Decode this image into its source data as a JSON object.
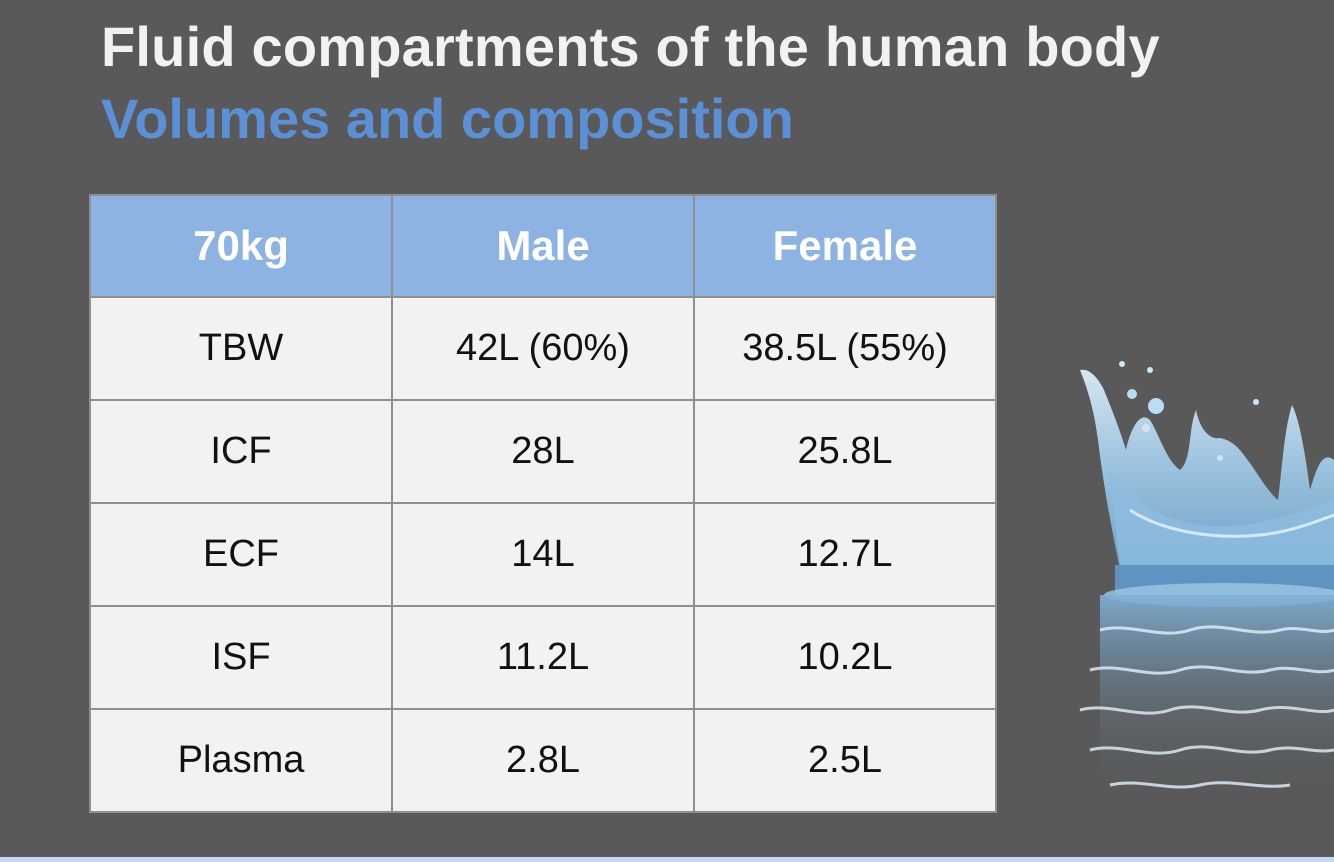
{
  "slide": {
    "title": "Fluid compartments of the human body",
    "subtitle": "Volumes and composition"
  },
  "table": {
    "headers": [
      "70kg",
      "Male",
      "Female"
    ],
    "rows": [
      [
        "TBW",
        "42L (60%)",
        "38.5L (55%)"
      ],
      [
        "ICF",
        "28L",
        "25.8L"
      ],
      [
        "ECF",
        "14L",
        "12.7L"
      ],
      [
        "ISF",
        "11.2L",
        "10.2L"
      ],
      [
        "Plasma",
        "2.8L",
        "2.5L"
      ]
    ]
  },
  "colors": {
    "background": "#595959",
    "title": "#f2f2f2",
    "subtitle": "#5b8fd6",
    "header_fill": "#8db3e2",
    "cell_fill": "#f2f2f2",
    "water": "#9cc6e4"
  },
  "decoration": {
    "image": "water-splash-icon"
  }
}
